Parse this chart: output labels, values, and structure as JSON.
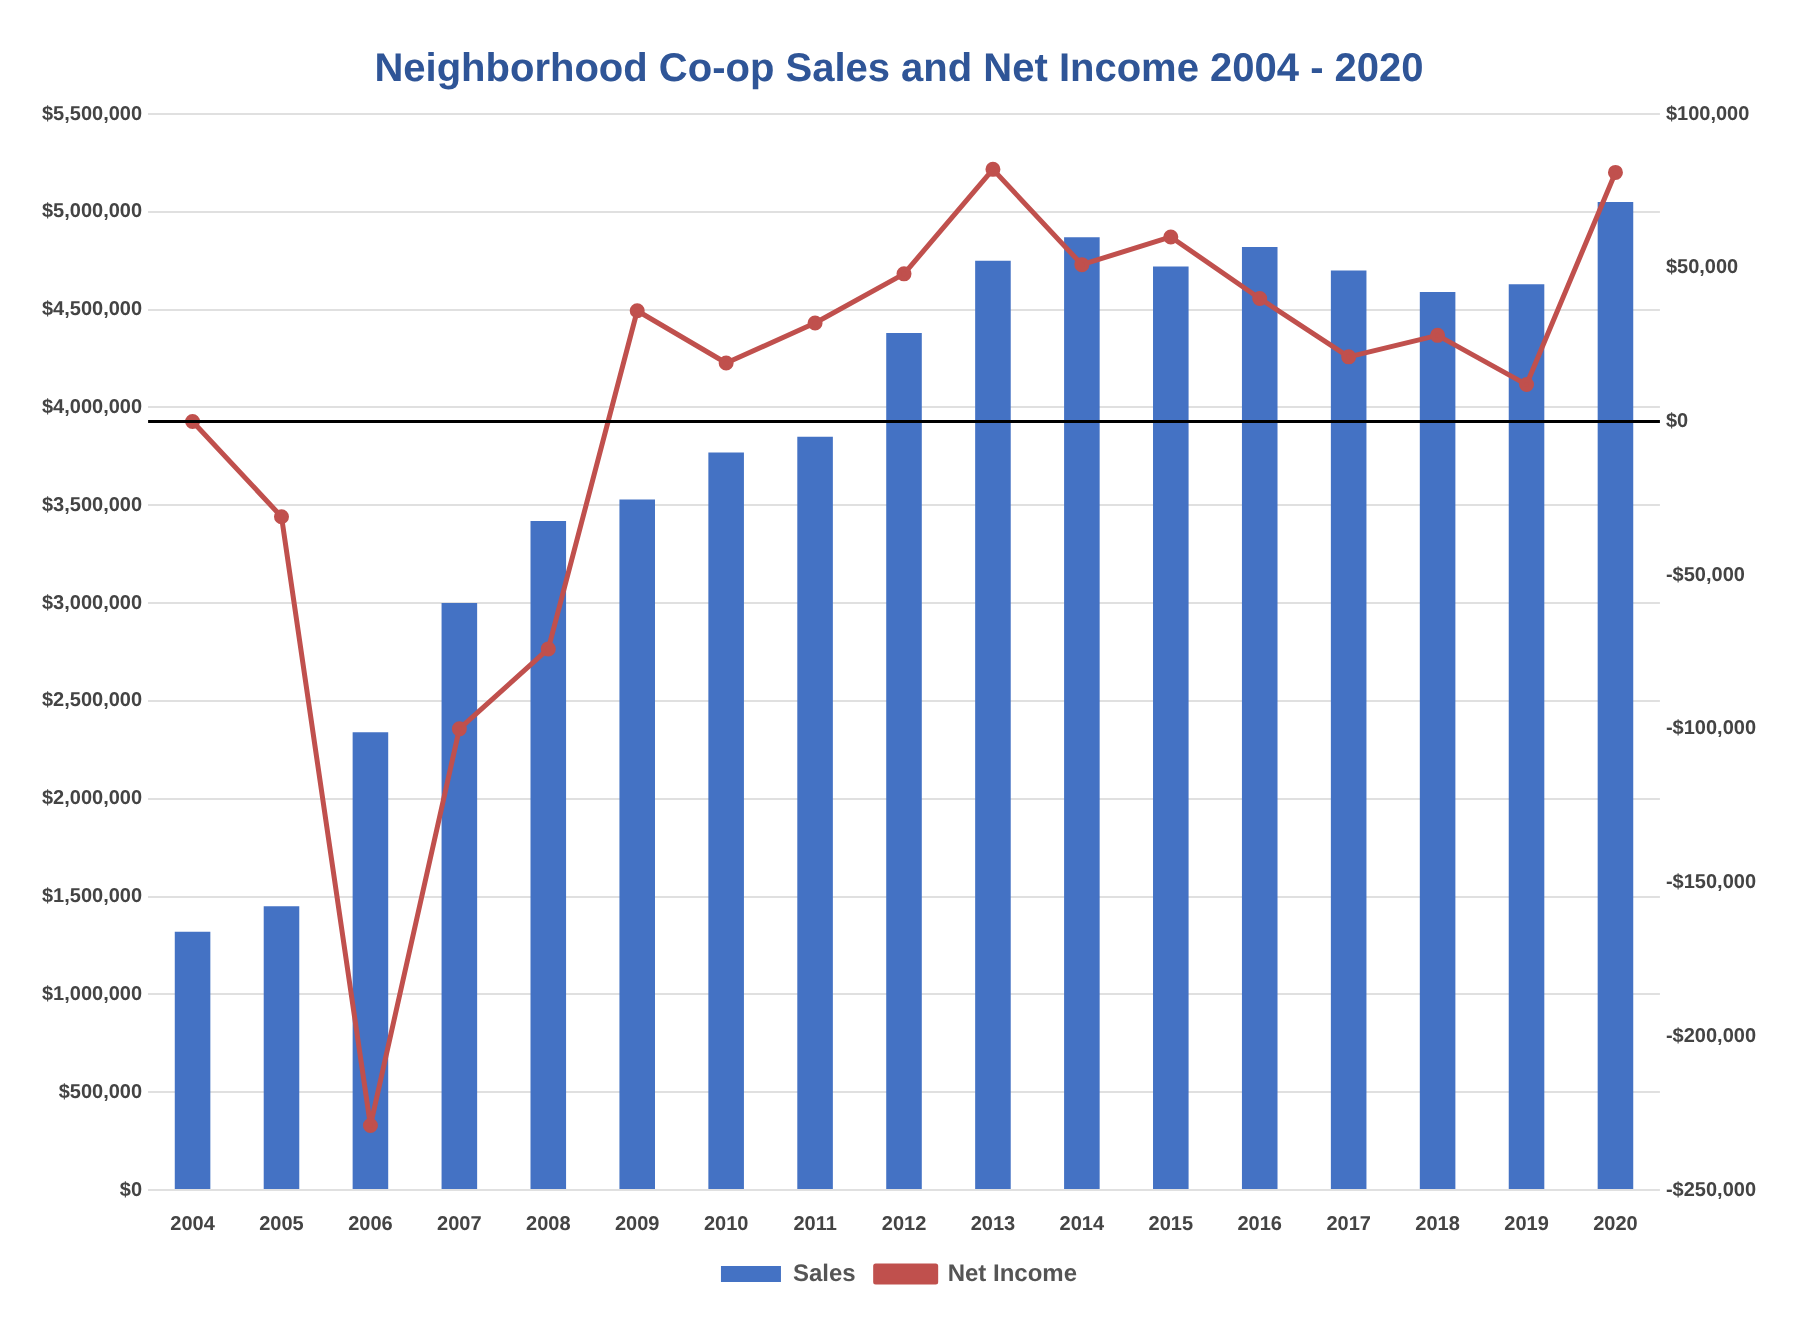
{
  "chart_data": {
    "type": "bar",
    "title": "Neighborhood Co-op Sales and Net Income 2004 - 2020",
    "categories": [
      "2004",
      "2005",
      "2006",
      "2007",
      "2008",
      "2009",
      "2010",
      "2011",
      "2012",
      "2013",
      "2014",
      "2015",
      "2016",
      "2017",
      "2018",
      "2019",
      "2020"
    ],
    "series": [
      {
        "name": "Sales",
        "color": "#4472c4",
        "values": [
          1320000,
          1450000,
          2340000,
          3000000,
          3420000,
          3530000,
          3770000,
          3850000,
          4380000,
          4750000,
          4870000,
          4720000,
          4820000,
          4700000,
          4590000,
          4630000,
          5050000
        ]
      },
      {
        "name": "Net Income",
        "type": "line",
        "axis": "y2",
        "color": "#c0504d",
        "marker": "circle",
        "values": [
          0,
          -31000,
          -229000,
          -100000,
          -74000,
          36000,
          19000,
          32000,
          48000,
          82000,
          51000,
          60000,
          40000,
          21000,
          28000,
          12000,
          81000
        ]
      }
    ],
    "ylim": [
      0,
      5500000
    ],
    "yticks": [
      {
        "value": 0,
        "label": "$0"
      },
      {
        "value": 500000,
        "label": "$500,000"
      },
      {
        "value": 1000000,
        "label": "$1,000,000"
      },
      {
        "value": 1500000,
        "label": "$1,500,000"
      },
      {
        "value": 2000000,
        "label": "$2,000,000"
      },
      {
        "value": 2500000,
        "label": "$2,500,000"
      },
      {
        "value": 3000000,
        "label": "$3,000,000"
      },
      {
        "value": 3500000,
        "label": "$3,500,000"
      },
      {
        "value": 4000000,
        "label": "$4,000,000"
      },
      {
        "value": 4500000,
        "label": "$4,500,000"
      },
      {
        "value": 5000000,
        "label": "$5,000,000"
      },
      {
        "value": 5500000,
        "label": "$5,500,000"
      }
    ],
    "y2lim": [
      -250000,
      100000
    ],
    "y2ticks": [
      {
        "value": -250000,
        "label": "-$250,000"
      },
      {
        "value": -200000,
        "label": "-$200,000"
      },
      {
        "value": -150000,
        "label": "-$150,000"
      },
      {
        "value": -100000,
        "label": "-$100,000"
      },
      {
        "value": -50000,
        "label": "-$50,000"
      },
      {
        "value": 0,
        "label": "$0"
      },
      {
        "value": 50000,
        "label": "$50,000"
      },
      {
        "value": 100000,
        "label": "$100,000"
      }
    ],
    "ref_lines": [
      {
        "axis": "y2",
        "value": 0,
        "color": "#000000"
      }
    ],
    "grid": "y",
    "legend": "bottom"
  }
}
